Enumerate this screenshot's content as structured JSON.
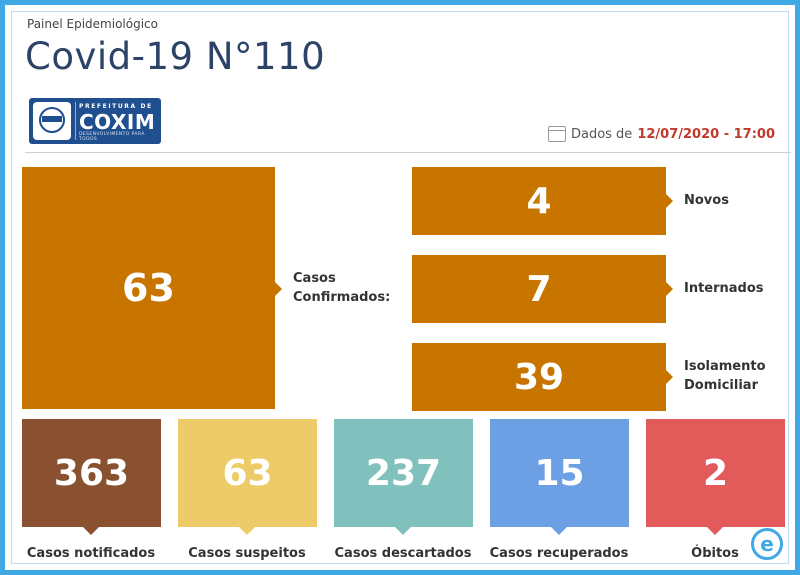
{
  "header": {
    "subtitle": "Painel Epidemiológico",
    "title": "Covid-19 N°110"
  },
  "logo": {
    "top": "PREFEITURA DE",
    "name": "COXIM",
    "bottom": "DESENVOLVIMENTO PARA TODOS"
  },
  "date": {
    "prefix": "Dados de",
    "value": "12/07/2020 - 17:00",
    "icon": "calendar-icon"
  },
  "confirmed": {
    "value": "63",
    "label_line1": "Casos",
    "label_line2": "Confirmados:"
  },
  "breakdown": [
    {
      "value": "4",
      "label_line1": "Novos",
      "label_line2": ""
    },
    {
      "value": "7",
      "label_line1": "Internados",
      "label_line2": ""
    },
    {
      "value": "39",
      "label_line1": "Isolamento",
      "label_line2": "Domiciliar"
    }
  ],
  "cards": [
    {
      "value": "363",
      "label": "Casos notificados",
      "color": "#8a5130"
    },
    {
      "value": "63",
      "label": "Casos suspeitos",
      "color": "#eccb68"
    },
    {
      "value": "237",
      "label": "Casos descartados",
      "color": "#80c1bd"
    },
    {
      "value": "15",
      "label": "Casos recuperados",
      "color": "#6c9fe3"
    },
    {
      "value": "2",
      "label": "Óbitos",
      "color": "#e25a5a"
    }
  ],
  "colors": {
    "accent": "#c87500",
    "frame": "#3fa9e6",
    "title": "#2c4266",
    "date": "#c0392b"
  },
  "badge": {
    "letter": "e"
  }
}
